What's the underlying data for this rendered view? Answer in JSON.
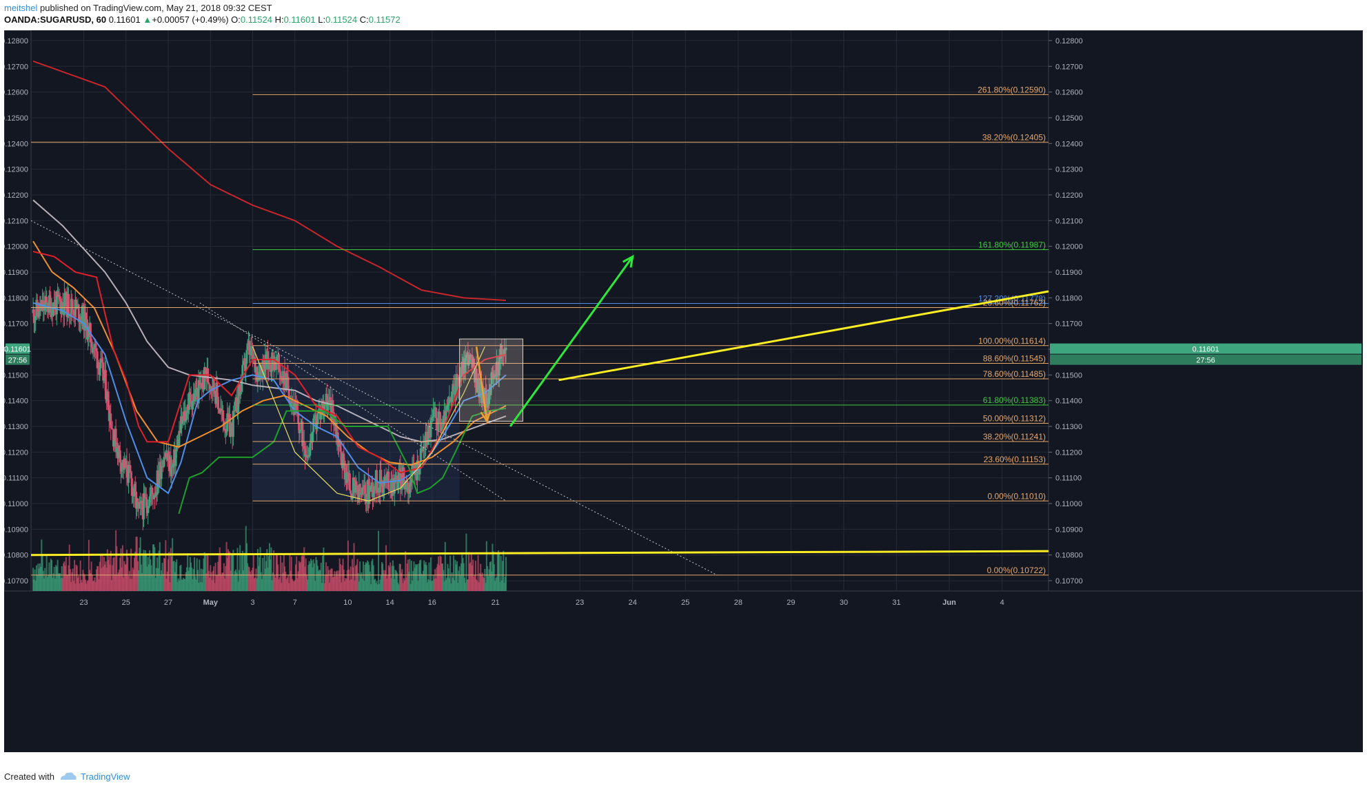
{
  "header": {
    "author": "meitshel",
    "published": " published on TradingView.com, May 21, 2018 09:32 CEST",
    "symbol": "OANDA:SUGARUSD, 60",
    "last": "0.11601",
    "change": "+0.00057 (+0.49%)",
    "o_label": "O:",
    "o_val": "0.11524",
    "h_label": "H:",
    "h_val": "0.11601",
    "l_label": "L:",
    "l_val": "0.11524",
    "c_label": "C:",
    "c_val": "0.11572"
  },
  "footer": {
    "created_with": "Created with",
    "brand": "TradingView"
  },
  "colors": {
    "background": "#131722",
    "grid": "#262b38",
    "up": "#3ea67e",
    "down": "#d8506f",
    "fib_orange": "#e8a86a",
    "fib_green": "#3ecb3e",
    "trend_yellow": "#ffee22",
    "ma_red": "#c8262a",
    "ma_gray": "#b8b0b8",
    "ma_blue": "#4f8fe8",
    "ma_orange": "#f0902c",
    "tenkan_red": "#e0202a",
    "kijun_green": "#1ea02a"
  },
  "chart_data": {
    "type": "candlestick",
    "title": "",
    "xlabel": "",
    "ylabel": "",
    "ylim": [
      0.1066,
      0.1284
    ],
    "y_ticks": [
      "0.12800",
      "0.12700",
      "0.12600",
      "0.12500",
      "0.12400",
      "0.12300",
      "0.12200",
      "0.12100",
      "0.12000",
      "0.11900",
      "0.11800",
      "0.11700",
      "0.11600",
      "0.11500",
      "0.11400",
      "0.11300",
      "0.11200",
      "0.11100",
      "0.11000",
      "0.10900",
      "0.10800",
      "0.10700"
    ],
    "x_tick_labels": [
      {
        "label": "23",
        "day": 23
      },
      {
        "label": "25",
        "day": 25
      },
      {
        "label": "27",
        "day": 27
      },
      {
        "label": "May",
        "day": 29
      },
      {
        "label": "3",
        "day": 31
      },
      {
        "label": "7",
        "day": 33
      },
      {
        "label": "10",
        "day": 35.5
      },
      {
        "label": "14",
        "day": 37.5
      },
      {
        "label": "16",
        "day": 39.5
      },
      {
        "label": "21",
        "day": 42.5
      },
      {
        "label": "23",
        "day": 46.5
      },
      {
        "label": "24",
        "day": 49
      },
      {
        "label": "25",
        "day": 51.5
      },
      {
        "label": "28",
        "day": 54
      },
      {
        "label": "29",
        "day": 56.5
      },
      {
        "label": "30",
        "day": 59
      },
      {
        "label": "31",
        "day": 61.5
      },
      {
        "label": "Jun",
        "day": 64
      },
      {
        "label": "4",
        "day": 66.5
      }
    ],
    "x_range_days": [
      20.5,
      68.7
    ],
    "last_price": {
      "value": 0.11601,
      "label": "0.11601",
      "countdown": "27:56"
    },
    "price_path": [
      [
        20.6,
        0.1174
      ],
      [
        21.3,
        0.1177
      ],
      [
        22.0,
        0.1178
      ],
      [
        22.6,
        0.1176
      ],
      [
        23.0,
        0.1172
      ],
      [
        23.6,
        0.1158
      ],
      [
        24.0,
        0.1147
      ],
      [
        24.4,
        0.1127
      ],
      [
        24.8,
        0.1116
      ],
      [
        25.2,
        0.111
      ],
      [
        25.6,
        0.1096
      ],
      [
        26.0,
        0.1101
      ],
      [
        26.4,
        0.1106
      ],
      [
        26.8,
        0.112
      ],
      [
        27.2,
        0.1113
      ],
      [
        27.6,
        0.113
      ],
      [
        28.0,
        0.114
      ],
      [
        28.4,
        0.1143
      ],
      [
        28.8,
        0.115
      ],
      [
        29.2,
        0.1145
      ],
      [
        29.6,
        0.1132
      ],
      [
        30.0,
        0.1129
      ],
      [
        30.4,
        0.1145
      ],
      [
        30.8,
        0.116
      ],
      [
        31.2,
        0.1152
      ],
      [
        31.6,
        0.1154
      ],
      [
        32.0,
        0.1156
      ],
      [
        32.4,
        0.115
      ],
      [
        32.8,
        0.1143
      ],
      [
        33.2,
        0.113
      ],
      [
        33.6,
        0.112
      ],
      [
        34.0,
        0.1132
      ],
      [
        34.4,
        0.114
      ],
      [
        34.8,
        0.1136
      ],
      [
        35.2,
        0.1118
      ],
      [
        35.6,
        0.1107
      ],
      [
        36.0,
        0.1103
      ],
      [
        36.4,
        0.1104
      ],
      [
        36.8,
        0.1108
      ],
      [
        37.2,
        0.1109
      ],
      [
        37.6,
        0.1108
      ],
      [
        38.0,
        0.111
      ],
      [
        38.4,
        0.1108
      ],
      [
        38.8,
        0.1114
      ],
      [
        39.2,
        0.1125
      ],
      [
        39.6,
        0.1134
      ],
      [
        40.0,
        0.113
      ],
      [
        40.4,
        0.114
      ],
      [
        40.8,
        0.115
      ],
      [
        41.2,
        0.1158
      ],
      [
        41.6,
        0.1148
      ],
      [
        42.0,
        0.114
      ],
      [
        42.4,
        0.1148
      ],
      [
        42.7,
        0.1156
      ],
      [
        43.0,
        0.116
      ]
    ],
    "volume_path": [
      [
        20.6,
        38
      ],
      [
        22,
        30
      ],
      [
        24,
        40
      ],
      [
        25.5,
        55
      ],
      [
        27,
        42
      ],
      [
        29,
        38
      ],
      [
        31,
        48
      ],
      [
        33,
        36
      ],
      [
        35,
        34
      ],
      [
        37,
        30
      ],
      [
        39,
        32
      ],
      [
        41,
        38
      ],
      [
        43,
        40
      ]
    ],
    "moving_averages": [
      {
        "name": "red MA",
        "color": "#c8262a",
        "points": [
          [
            20.6,
            0.1272
          ],
          [
            24,
            0.1262
          ],
          [
            27,
            0.1238
          ],
          [
            29,
            0.1224
          ],
          [
            31,
            0.1216
          ],
          [
            33,
            0.121
          ],
          [
            35,
            0.12
          ],
          [
            37,
            0.1192
          ],
          [
            39,
            0.1183
          ],
          [
            41,
            0.118
          ],
          [
            43,
            0.1179
          ]
        ]
      },
      {
        "name": "gray MA",
        "color": "#b8b0b8",
        "points": [
          [
            20.6,
            0.1218
          ],
          [
            22,
            0.1208
          ],
          [
            24,
            0.119
          ],
          [
            25,
            0.1178
          ],
          [
            26,
            0.1163
          ],
          [
            27,
            0.1153
          ],
          [
            28,
            0.115
          ],
          [
            29,
            0.1149
          ],
          [
            30,
            0.1148
          ],
          [
            31,
            0.1146
          ],
          [
            32,
            0.1145
          ],
          [
            33,
            0.1144
          ],
          [
            34,
            0.114
          ],
          [
            35,
            0.1138
          ],
          [
            36,
            0.1134
          ],
          [
            37,
            0.113
          ],
          [
            38,
            0.1126
          ],
          [
            39,
            0.1124
          ],
          [
            40,
            0.1125
          ],
          [
            41,
            0.1128
          ],
          [
            42,
            0.1131
          ],
          [
            43,
            0.1134
          ]
        ]
      },
      {
        "name": "blue MA",
        "color": "#4f8fe8",
        "points": [
          [
            20.6,
            0.1178
          ],
          [
            22,
            0.1175
          ],
          [
            23,
            0.117
          ],
          [
            24,
            0.1158
          ],
          [
            25,
            0.1132
          ],
          [
            26,
            0.111
          ],
          [
            27,
            0.1104
          ],
          [
            27.6,
            0.1116
          ],
          [
            28.4,
            0.114
          ],
          [
            29,
            0.1144
          ],
          [
            30,
            0.1148
          ],
          [
            31,
            0.115
          ],
          [
            32,
            0.1148
          ],
          [
            33,
            0.1136
          ],
          [
            34,
            0.113
          ],
          [
            35,
            0.1126
          ],
          [
            36,
            0.1114
          ],
          [
            37,
            0.1108
          ],
          [
            38,
            0.1109
          ],
          [
            39,
            0.1114
          ],
          [
            40,
            0.1126
          ],
          [
            41,
            0.114
          ],
          [
            42,
            0.1143
          ],
          [
            43,
            0.115
          ]
        ]
      },
      {
        "name": "orange MA",
        "color": "#f0902c",
        "points": [
          [
            20.6,
            0.1202
          ],
          [
            21.5,
            0.119
          ],
          [
            22.5,
            0.1184
          ],
          [
            23.5,
            0.1176
          ],
          [
            24.5,
            0.1158
          ],
          [
            25.5,
            0.1136
          ],
          [
            26.5,
            0.1124
          ],
          [
            27.5,
            0.1122
          ],
          [
            28.5,
            0.1126
          ],
          [
            29.5,
            0.113
          ],
          [
            30.5,
            0.1136
          ],
          [
            31.5,
            0.114
          ],
          [
            32.5,
            0.1142
          ],
          [
            33.5,
            0.1138
          ],
          [
            34.5,
            0.1134
          ],
          [
            35.5,
            0.1126
          ],
          [
            36.5,
            0.112
          ],
          [
            37.5,
            0.1116
          ],
          [
            38.5,
            0.1115
          ],
          [
            39.5,
            0.1118
          ],
          [
            40.5,
            0.1124
          ],
          [
            41.5,
            0.1132
          ],
          [
            42.5,
            0.1136
          ],
          [
            43,
            0.1138
          ]
        ]
      },
      {
        "name": "tenkan red",
        "color": "#e0202a",
        "points": [
          [
            20.6,
            0.1198
          ],
          [
            21.6,
            0.1196
          ],
          [
            22.6,
            0.119
          ],
          [
            23.6,
            0.1188
          ],
          [
            24.4,
            0.116
          ],
          [
            25.0,
            0.1148
          ],
          [
            25.6,
            0.113
          ],
          [
            26.0,
            0.1124
          ],
          [
            27.0,
            0.1124
          ],
          [
            28.0,
            0.115
          ],
          [
            29.0,
            0.115
          ],
          [
            30.0,
            0.1142
          ],
          [
            31.0,
            0.1156
          ],
          [
            32.0,
            0.1156
          ],
          [
            33.0,
            0.115
          ],
          [
            34.0,
            0.1138
          ],
          [
            35.0,
            0.1134
          ],
          [
            36.0,
            0.1122
          ],
          [
            37.0,
            0.1118
          ],
          [
            38.0,
            0.1112
          ],
          [
            39.0,
            0.1114
          ],
          [
            40.0,
            0.1128
          ],
          [
            41.0,
            0.115
          ],
          [
            42.0,
            0.1156
          ],
          [
            43.0,
            0.1158
          ]
        ]
      },
      {
        "name": "kijun green",
        "color": "#1ea02a",
        "points": [
          [
            27.5,
            0.1096
          ],
          [
            28,
            0.111
          ],
          [
            28.6,
            0.1112
          ],
          [
            29.4,
            0.1118
          ],
          [
            30.2,
            0.1118
          ],
          [
            31,
            0.1118
          ],
          [
            32,
            0.1124
          ],
          [
            32.6,
            0.1136
          ],
          [
            33.4,
            0.1136
          ],
          [
            34.4,
            0.1136
          ],
          [
            35.4,
            0.113
          ],
          [
            36.4,
            0.113
          ],
          [
            37.4,
            0.113
          ],
          [
            38.4,
            0.1114
          ],
          [
            38.8,
            0.1104
          ],
          [
            39.4,
            0.1106
          ],
          [
            40.0,
            0.111
          ],
          [
            40.6,
            0.112
          ],
          [
            41.4,
            0.1134
          ],
          [
            42.2,
            0.1136
          ],
          [
            43.0,
            0.1137
          ]
        ]
      }
    ],
    "fib_levels": [
      {
        "label": "261.80%(0.12590)",
        "value": 0.1259,
        "color": "#e8a86a",
        "start_day": 31,
        "end_day": 68.7
      },
      {
        "label": "38.20%(0.12405)",
        "value": 0.12405,
        "color": "#e8a86a",
        "start_day": 20.5,
        "end_day": 68.7
      },
      {
        "label": "161.80%(0.11987)",
        "value": 0.11987,
        "color": "#3ecb3e",
        "start_day": 31,
        "end_day": 68.7
      },
      {
        "label": "127.20%(0.11778)",
        "value": 0.11778,
        "color": "#4f8fe8",
        "start_day": 31,
        "end_day": 68.7
      },
      {
        "label": "23.60%(0.11762)",
        "value": 0.11762,
        "color": "#e8a86a",
        "start_day": 20.5,
        "end_day": 68.7
      },
      {
        "label": "100.00%(0.11614)",
        "value": 0.11614,
        "color": "#e8a86a",
        "start_day": 31,
        "end_day": 68.7
      },
      {
        "label": "88.60%(0.11545)",
        "value": 0.11545,
        "color": "#e8a86a",
        "start_day": 31,
        "end_day": 68.7
      },
      {
        "label": "78.60%(0.11485)",
        "value": 0.11485,
        "color": "#e8a86a",
        "start_day": 31,
        "end_day": 68.7
      },
      {
        "label": "61.80%(0.11383)",
        "value": 0.11383,
        "color": "#3ecb3e",
        "start_day": 31,
        "end_day": 68.7
      },
      {
        "label": "50.00%(0.11312)",
        "value": 0.11312,
        "color": "#e8a86a",
        "start_day": 31,
        "end_day": 68.7
      },
      {
        "label": "38.20%(0.11241)",
        "value": 0.11241,
        "color": "#e8a86a",
        "start_day": 31,
        "end_day": 68.7
      },
      {
        "label": "23.60%(0.11153)",
        "value": 0.11153,
        "color": "#e8a86a",
        "start_day": 31,
        "end_day": 68.7
      },
      {
        "label": "0.00%(0.11010)",
        "value": 0.1101,
        "color": "#e8a86a",
        "start_day": 31,
        "end_day": 68.7
      },
      {
        "label": "0.00%(0.10722)",
        "value": 0.10722,
        "color": "#e8a86a",
        "start_day": 20.5,
        "end_day": 68.7
      }
    ],
    "drawings": {
      "upper_yellow_trend": [
        [
          45.5,
          0.1148
        ],
        [
          68.7,
          0.11825
        ]
      ],
      "lower_yellow_trend": [
        [
          20.5,
          0.108
        ],
        [
          68.7,
          0.10815
        ]
      ],
      "dotted_downtrend": [
        [
          20.5,
          0.121
        ],
        [
          53.0,
          0.10722
        ]
      ],
      "dotted_downtrend_2": [
        [
          28.5,
          0.1178
        ],
        [
          43.0,
          0.1101
        ]
      ],
      "green_arrow": [
        [
          43.2,
          0.113
        ],
        [
          49.0,
          0.1196
        ]
      ],
      "orange_arrow": [
        [
          41.6,
          0.1161
        ],
        [
          42.1,
          0.1132
        ]
      ],
      "highlight_box": {
        "x0": 40.8,
        "x1": 43.8,
        "y0": 0.1164,
        "y1": 0.1132
      },
      "cup_curve": [
        [
          31,
          0.1161
        ],
        [
          33,
          0.112
        ],
        [
          35,
          0.1104
        ],
        [
          36.5,
          0.1101
        ],
        [
          38,
          0.1106
        ],
        [
          39.5,
          0.112
        ],
        [
          41,
          0.1143
        ],
        [
          42,
          0.1161
        ]
      ],
      "shaded_zone": {
        "x0": 31,
        "x1": 40.8,
        "y0": 0.11614,
        "y1": 0.1101
      }
    }
  }
}
